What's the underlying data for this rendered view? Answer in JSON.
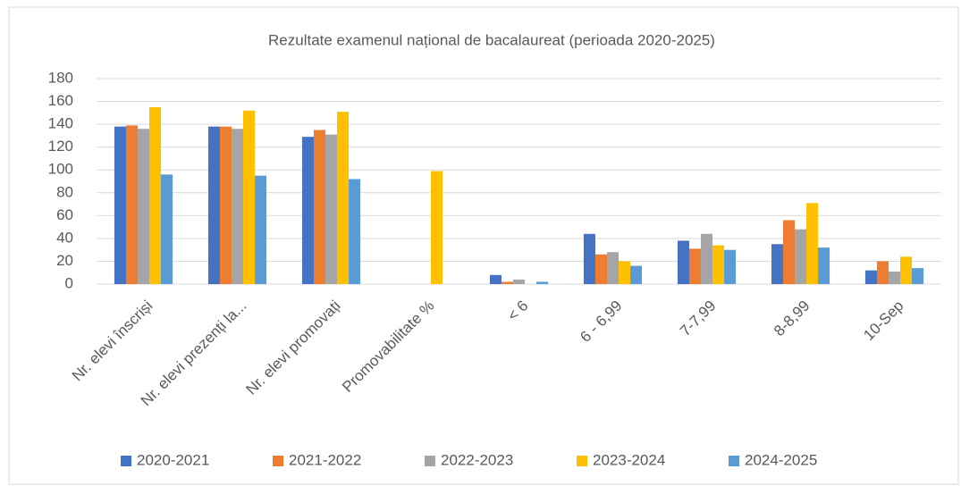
{
  "chart_data": {
    "type": "bar",
    "title": "Rezultate examenul național de bacalaureat (perioada 2020-2025)",
    "categories": [
      "Nr. elevi înscriși",
      "Nr. elevi prezenți la...",
      "Nr. elevi promovați",
      "Promovabilitate %",
      "< 6",
      "6 - 6,99",
      "7-7,99",
      "8-8,99",
      "10-Sep"
    ],
    "series": [
      {
        "name": "2020-2021",
        "color": "#4472c4",
        "values": [
          138,
          138,
          129,
          null,
          8,
          44,
          38,
          35,
          12
        ]
      },
      {
        "name": "2021-2022",
        "color": "#ed7d31",
        "values": [
          139,
          138,
          135,
          null,
          2,
          26,
          31,
          56,
          20
        ]
      },
      {
        "name": "2022-2023",
        "color": "#a5a5a5",
        "values": [
          136,
          136,
          131,
          null,
          4,
          28,
          44,
          48,
          11
        ]
      },
      {
        "name": "2023-2024",
        "color": "#ffc000",
        "values": [
          155,
          152,
          151,
          99,
          null,
          20,
          34,
          71,
          24
        ]
      },
      {
        "name": "2024-2025",
        "color": "#5b9bd5",
        "values": [
          96,
          95,
          92,
          null,
          2,
          16,
          30,
          32,
          14
        ]
      }
    ],
    "ylim": [
      0,
      180
    ],
    "yticks": [
      0,
      20,
      40,
      60,
      80,
      100,
      120,
      140,
      160,
      180
    ],
    "grid": true,
    "legend": "bottom"
  }
}
